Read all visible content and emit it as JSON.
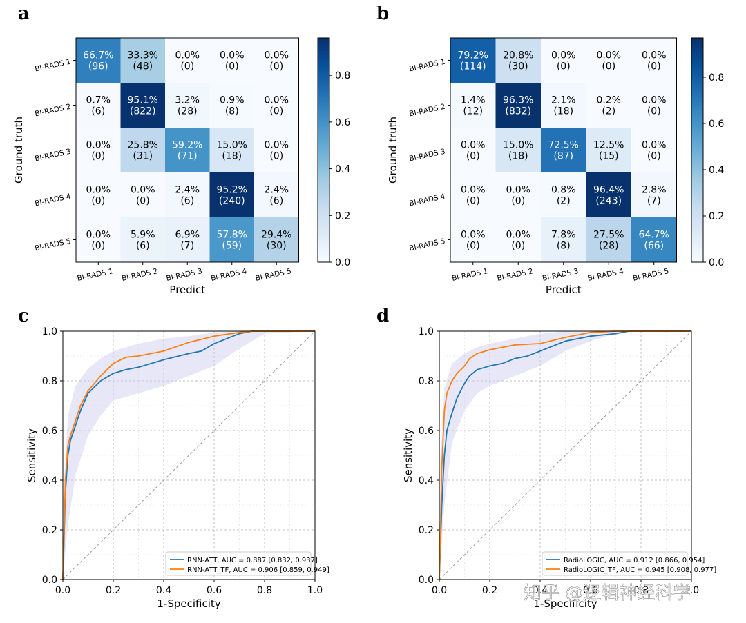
{
  "panels": {
    "a": "a",
    "b": "b",
    "c": "c",
    "d": "d"
  },
  "watermark": "知乎 @逻辑神经科学",
  "colors": {
    "cmap": [
      "#f7fbff",
      "#deebf7",
      "#c6dbef",
      "#9ecae1",
      "#6baed6",
      "#4292c6",
      "#2171b5",
      "#08519c",
      "#08306b"
    ],
    "blue_series": "#1f77b4",
    "orange_series": "#ff7f0e",
    "band_fill": "#c9c9ee"
  },
  "chart_data": [
    {
      "type": "heatmap",
      "panel": "a",
      "xlabel": "Predict",
      "ylabel": "Ground truth",
      "x_categories": [
        "BI-RADS 1",
        "BI-RADS 2",
        "BI-RADS 3",
        "BI-RADS 4",
        "BI-RADS 5"
      ],
      "y_categories": [
        "BI-RADS 1",
        "BI-RADS 2",
        "BI-RADS 3",
        "BI-RADS 4",
        "BI-RADS 5"
      ],
      "colorbar_ticks": [
        "0.0",
        "0.2",
        "0.4",
        "0.6",
        "0.8"
      ],
      "colorbar_range": [
        0,
        0.96
      ],
      "values": [
        [
          0.667,
          0.333,
          0.0,
          0.0,
          0.0
        ],
        [
          0.007,
          0.951,
          0.032,
          0.009,
          0.0
        ],
        [
          0.0,
          0.258,
          0.592,
          0.15,
          0.0
        ],
        [
          0.0,
          0.0,
          0.024,
          0.952,
          0.024
        ],
        [
          0.0,
          0.059,
          0.069,
          0.578,
          0.294
        ]
      ],
      "percent_labels": [
        [
          "66.7%",
          "33.3%",
          "0.0%",
          "0.0%",
          "0.0%"
        ],
        [
          "0.7%",
          "95.1%",
          "3.2%",
          "0.9%",
          "0.0%"
        ],
        [
          "0.0%",
          "25.8%",
          "59.2%",
          "15.0%",
          "0.0%"
        ],
        [
          "0.0%",
          "0.0%",
          "2.4%",
          "95.2%",
          "2.4%"
        ],
        [
          "0.0%",
          "5.9%",
          "6.9%",
          "57.8%",
          "29.4%"
        ]
      ],
      "count_labels": [
        [
          "(96)",
          "(48)",
          "(0)",
          "(0)",
          "(0)"
        ],
        [
          "(6)",
          "(822)",
          "(28)",
          "(8)",
          "(0)"
        ],
        [
          "(0)",
          "(31)",
          "(71)",
          "(18)",
          "(0)"
        ],
        [
          "(0)",
          "(0)",
          "(6)",
          "(240)",
          "(6)"
        ],
        [
          "(0)",
          "(6)",
          "(7)",
          "(59)",
          "(30)"
        ]
      ]
    },
    {
      "type": "heatmap",
      "panel": "b",
      "xlabel": "Predict",
      "ylabel": "Ground truth",
      "x_categories": [
        "BI-RADS 1",
        "BI-RADS 2",
        "BI-RADS 3",
        "BI-RADS 4",
        "BI-RADS 5"
      ],
      "y_categories": [
        "BI-RADS 1",
        "BI-RADS 2",
        "BI-RADS 3",
        "BI-RADS 4",
        "BI-RADS 5"
      ],
      "colorbar_ticks": [
        "0.0",
        "0.2",
        "0.4",
        "0.6",
        "0.8"
      ],
      "colorbar_range": [
        0,
        0.97
      ],
      "values": [
        [
          0.792,
          0.208,
          0.0,
          0.0,
          0.0
        ],
        [
          0.014,
          0.963,
          0.021,
          0.002,
          0.0
        ],
        [
          0.0,
          0.15,
          0.725,
          0.125,
          0.0
        ],
        [
          0.0,
          0.0,
          0.008,
          0.964,
          0.028
        ],
        [
          0.0,
          0.0,
          0.078,
          0.275,
          0.647
        ]
      ],
      "percent_labels": [
        [
          "79.2%",
          "20.8%",
          "0.0%",
          "0.0%",
          "0.0%"
        ],
        [
          "1.4%",
          "96.3%",
          "2.1%",
          "0.2%",
          "0.0%"
        ],
        [
          "0.0%",
          "15.0%",
          "72.5%",
          "12.5%",
          "0.0%"
        ],
        [
          "0.0%",
          "0.0%",
          "0.8%",
          "96.4%",
          "2.8%"
        ],
        [
          "0.0%",
          "0.0%",
          "7.8%",
          "27.5%",
          "64.7%"
        ]
      ],
      "count_labels": [
        [
          "(114)",
          "(30)",
          "(0)",
          "(0)",
          "(0)"
        ],
        [
          "(12)",
          "(832)",
          "(18)",
          "(2)",
          "(0)"
        ],
        [
          "(0)",
          "(18)",
          "(87)",
          "(15)",
          "(0)"
        ],
        [
          "(0)",
          "(0)",
          "(2)",
          "(243)",
          "(7)"
        ],
        [
          "(0)",
          "(0)",
          "(8)",
          "(28)",
          "(66)"
        ]
      ]
    },
    {
      "type": "line",
      "panel": "c",
      "xlabel": "1-Specificity",
      "ylabel": "Sensitivity",
      "xlim": [
        0,
        1
      ],
      "ylim": [
        0,
        1
      ],
      "ticks": [
        "0.0",
        "0.2",
        "0.4",
        "0.6",
        "0.8",
        "1.0"
      ],
      "grid": true,
      "legend_position": "lower-right",
      "series": [
        {
          "name": "RNN-ATT, AUC = 0.887 [0.832, 0.937]",
          "x": [
            0,
            0.01,
            0.02,
            0.03,
            0.05,
            0.07,
            0.1,
            0.15,
            0.2,
            0.25,
            0.3,
            0.4,
            0.5,
            0.55,
            0.6,
            0.7,
            0.75,
            0.8,
            1.0
          ],
          "y": [
            0,
            0.35,
            0.5,
            0.56,
            0.62,
            0.68,
            0.75,
            0.8,
            0.83,
            0.845,
            0.855,
            0.885,
            0.91,
            0.92,
            0.95,
            0.99,
            1.0,
            1.0,
            1.0
          ]
        },
        {
          "name": "RNN-ATT_TF, AUC = 0.906 [0.859, 0.949]",
          "x": [
            0,
            0.01,
            0.02,
            0.03,
            0.05,
            0.07,
            0.1,
            0.15,
            0.2,
            0.25,
            0.3,
            0.4,
            0.5,
            0.6,
            0.7,
            0.75,
            0.8,
            1.0
          ],
          "y": [
            0,
            0.4,
            0.54,
            0.58,
            0.64,
            0.7,
            0.76,
            0.82,
            0.87,
            0.895,
            0.9,
            0.92,
            0.955,
            0.98,
            0.995,
            1.0,
            1.0,
            1.0
          ]
        }
      ],
      "band": {
        "x": [
          0,
          0.02,
          0.05,
          0.1,
          0.15,
          0.2,
          0.3,
          0.4,
          0.5,
          0.6,
          0.7,
          0.75,
          0.8,
          1.0
        ],
        "upper": [
          0.3,
          0.66,
          0.78,
          0.85,
          0.89,
          0.92,
          0.95,
          0.97,
          0.98,
          0.995,
          1.0,
          1.0,
          1.0,
          1.0
        ],
        "lower": [
          0.0,
          0.22,
          0.42,
          0.58,
          0.66,
          0.72,
          0.75,
          0.78,
          0.82,
          0.86,
          0.93,
          0.96,
          0.99,
          1.0
        ]
      }
    },
    {
      "type": "line",
      "panel": "d",
      "xlabel": "1-Specificity",
      "ylabel": "Sensitivity",
      "xlim": [
        0,
        1
      ],
      "ylim": [
        0,
        1
      ],
      "ticks": [
        "0.0",
        "0.2",
        "0.4",
        "0.6",
        "0.8",
        "1.0"
      ],
      "grid": true,
      "legend_position": "lower-right",
      "series": [
        {
          "name": "RadioLOGIC, AUC = 0.912 [0.866, 0.954]",
          "x": [
            0,
            0.01,
            0.02,
            0.03,
            0.05,
            0.07,
            0.1,
            0.12,
            0.15,
            0.2,
            0.25,
            0.3,
            0.35,
            0.4,
            0.5,
            0.6,
            0.7,
            0.75,
            0.8,
            1.0
          ],
          "y": [
            0,
            0.3,
            0.5,
            0.6,
            0.67,
            0.73,
            0.79,
            0.82,
            0.845,
            0.86,
            0.87,
            0.89,
            0.9,
            0.92,
            0.96,
            0.98,
            0.99,
            1.0,
            1.0,
            1.0
          ]
        },
        {
          "name": "RadioLOGIC_TF, AUC = 0.945 [0.908, 0.977]",
          "x": [
            0,
            0.01,
            0.02,
            0.03,
            0.05,
            0.07,
            0.1,
            0.12,
            0.15,
            0.2,
            0.25,
            0.3,
            0.4,
            0.5,
            0.6,
            0.7,
            1.0
          ],
          "y": [
            0,
            0.45,
            0.68,
            0.75,
            0.8,
            0.83,
            0.86,
            0.89,
            0.91,
            0.925,
            0.935,
            0.945,
            0.95,
            0.975,
            0.995,
            1.0,
            1.0
          ]
        }
      ],
      "band": {
        "x": [
          0,
          0.02,
          0.05,
          0.1,
          0.15,
          0.2,
          0.3,
          0.4,
          0.5,
          0.6,
          0.7,
          0.8,
          1.0
        ],
        "upper": [
          0.4,
          0.77,
          0.87,
          0.91,
          0.935,
          0.95,
          0.97,
          0.99,
          1.0,
          1.0,
          1.0,
          1.0,
          1.0
        ],
        "lower": [
          0.0,
          0.3,
          0.55,
          0.68,
          0.75,
          0.78,
          0.82,
          0.86,
          0.92,
          0.96,
          0.99,
          1.0,
          1.0
        ]
      }
    }
  ]
}
